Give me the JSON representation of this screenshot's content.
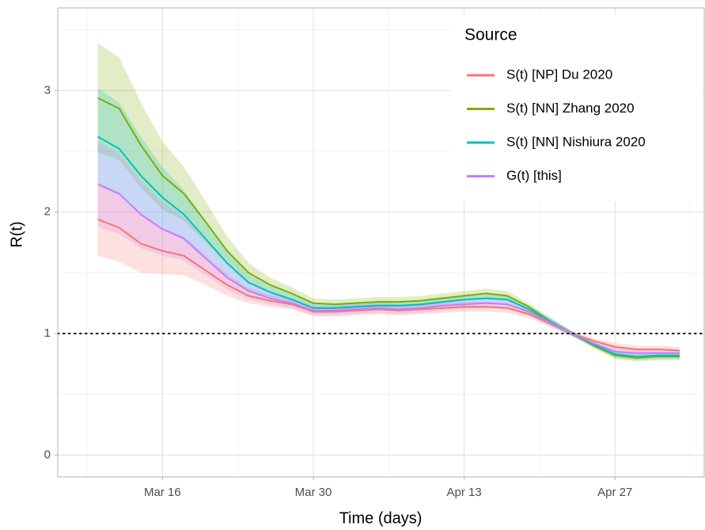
{
  "chart_data": {
    "type": "line",
    "x_label": "Time (days)",
    "y_label": "R(t)",
    "legend_title": "Source",
    "legend_position": "top-right",
    "grid": true,
    "ylim": [
      -0.18,
      3.68
    ],
    "yticks": [
      0,
      1,
      2,
      3
    ],
    "hline": 1,
    "x": [
      "Mar 10",
      "Mar 12",
      "Mar 14",
      "Mar 16",
      "Mar 18",
      "Mar 20",
      "Mar 22",
      "Mar 24",
      "Mar 26",
      "Mar 28",
      "Mar 30",
      "Apr 1",
      "Apr 3",
      "Apr 5",
      "Apr 7",
      "Apr 9",
      "Apr 11",
      "Apr 13",
      "Apr 15",
      "Apr 17",
      "Apr 19",
      "Apr 21",
      "Apr 23",
      "Apr 25",
      "Apr 27",
      "Apr 29",
      "May 1",
      "May 3"
    ],
    "xticks": [
      "Mar 16",
      "Mar 30",
      "Apr 13",
      "Apr 27"
    ],
    "series": [
      {
        "name": "S(t) [NP] Du 2020",
        "color": "#F8766D",
        "values": [
          1.94,
          1.87,
          1.74,
          1.68,
          1.64,
          1.52,
          1.4,
          1.31,
          1.27,
          1.24,
          1.18,
          1.18,
          1.19,
          1.2,
          1.19,
          1.2,
          1.21,
          1.22,
          1.22,
          1.21,
          1.16,
          1.08,
          1.0,
          0.94,
          0.89,
          0.87,
          0.87,
          0.86
        ],
        "lower": [
          1.64,
          1.59,
          1.5,
          1.49,
          1.48,
          1.4,
          1.31,
          1.25,
          1.22,
          1.2,
          1.14,
          1.14,
          1.15,
          1.16,
          1.15,
          1.16,
          1.17,
          1.18,
          1.18,
          1.17,
          1.13,
          1.05,
          0.98,
          0.92,
          0.86,
          0.84,
          0.84,
          0.83
        ],
        "upper": [
          2.24,
          2.15,
          1.98,
          1.87,
          1.8,
          1.64,
          1.49,
          1.37,
          1.32,
          1.28,
          1.22,
          1.22,
          1.23,
          1.24,
          1.23,
          1.24,
          1.25,
          1.26,
          1.26,
          1.25,
          1.19,
          1.11,
          1.02,
          0.96,
          0.92,
          0.9,
          0.9,
          0.89
        ]
      },
      {
        "name": "S(t) [NN] Zhang 2020",
        "color": "#7CAE00",
        "values": [
          2.94,
          2.85,
          2.55,
          2.3,
          2.15,
          1.92,
          1.68,
          1.5,
          1.4,
          1.33,
          1.25,
          1.24,
          1.25,
          1.26,
          1.26,
          1.27,
          1.29,
          1.31,
          1.33,
          1.31,
          1.22,
          1.1,
          1.0,
          0.9,
          0.82,
          0.8,
          0.81,
          0.81
        ],
        "lower": [
          2.49,
          2.43,
          2.2,
          2.02,
          1.93,
          1.75,
          1.56,
          1.42,
          1.34,
          1.28,
          1.21,
          1.2,
          1.21,
          1.22,
          1.22,
          1.23,
          1.25,
          1.27,
          1.29,
          1.27,
          1.19,
          1.07,
          0.98,
          0.88,
          0.79,
          0.77,
          0.78,
          0.78
        ],
        "upper": [
          3.39,
          3.27,
          2.9,
          2.58,
          2.37,
          2.09,
          1.8,
          1.58,
          1.46,
          1.38,
          1.29,
          1.28,
          1.29,
          1.3,
          1.3,
          1.31,
          1.33,
          1.35,
          1.37,
          1.35,
          1.25,
          1.13,
          1.02,
          0.92,
          0.85,
          0.83,
          0.84,
          0.84
        ]
      },
      {
        "name": "S(t) [NN] Nishiura 2020",
        "color": "#00BFC4",
        "values": [
          2.62,
          2.52,
          2.3,
          2.12,
          1.98,
          1.78,
          1.58,
          1.42,
          1.34,
          1.28,
          1.21,
          1.21,
          1.22,
          1.23,
          1.23,
          1.24,
          1.26,
          1.28,
          1.29,
          1.28,
          1.2,
          1.1,
          1.0,
          0.91,
          0.83,
          0.81,
          0.82,
          0.82
        ],
        "lower": [
          2.22,
          2.14,
          1.98,
          1.87,
          1.78,
          1.63,
          1.47,
          1.35,
          1.29,
          1.24,
          1.17,
          1.17,
          1.18,
          1.19,
          1.19,
          1.2,
          1.22,
          1.24,
          1.25,
          1.24,
          1.17,
          1.07,
          0.98,
          0.89,
          0.8,
          0.78,
          0.79,
          0.79
        ],
        "upper": [
          3.02,
          2.9,
          2.62,
          2.37,
          2.18,
          1.93,
          1.69,
          1.49,
          1.39,
          1.32,
          1.25,
          1.25,
          1.26,
          1.27,
          1.27,
          1.28,
          1.3,
          1.32,
          1.33,
          1.32,
          1.23,
          1.13,
          1.02,
          0.93,
          0.86,
          0.84,
          0.85,
          0.85
        ]
      },
      {
        "name": "G(t) [this]",
        "color": "#C77CFF",
        "values": [
          2.23,
          2.15,
          1.98,
          1.86,
          1.78,
          1.62,
          1.46,
          1.35,
          1.29,
          1.25,
          1.19,
          1.19,
          1.2,
          1.21,
          1.2,
          1.21,
          1.23,
          1.24,
          1.25,
          1.24,
          1.18,
          1.09,
          1.0,
          0.92,
          0.85,
          0.84,
          0.84,
          0.84
        ],
        "lower": [
          1.88,
          1.82,
          1.7,
          1.64,
          1.6,
          1.48,
          1.36,
          1.28,
          1.24,
          1.21,
          1.15,
          1.15,
          1.16,
          1.17,
          1.16,
          1.17,
          1.19,
          1.2,
          1.21,
          1.2,
          1.15,
          1.06,
          0.98,
          0.9,
          0.82,
          0.81,
          0.81,
          0.81
        ],
        "upper": [
          2.58,
          2.48,
          2.26,
          2.08,
          1.96,
          1.76,
          1.56,
          1.42,
          1.34,
          1.29,
          1.23,
          1.23,
          1.24,
          1.25,
          1.24,
          1.25,
          1.27,
          1.28,
          1.29,
          1.28,
          1.21,
          1.12,
          1.02,
          0.94,
          0.88,
          0.87,
          0.87,
          0.87
        ]
      }
    ]
  }
}
